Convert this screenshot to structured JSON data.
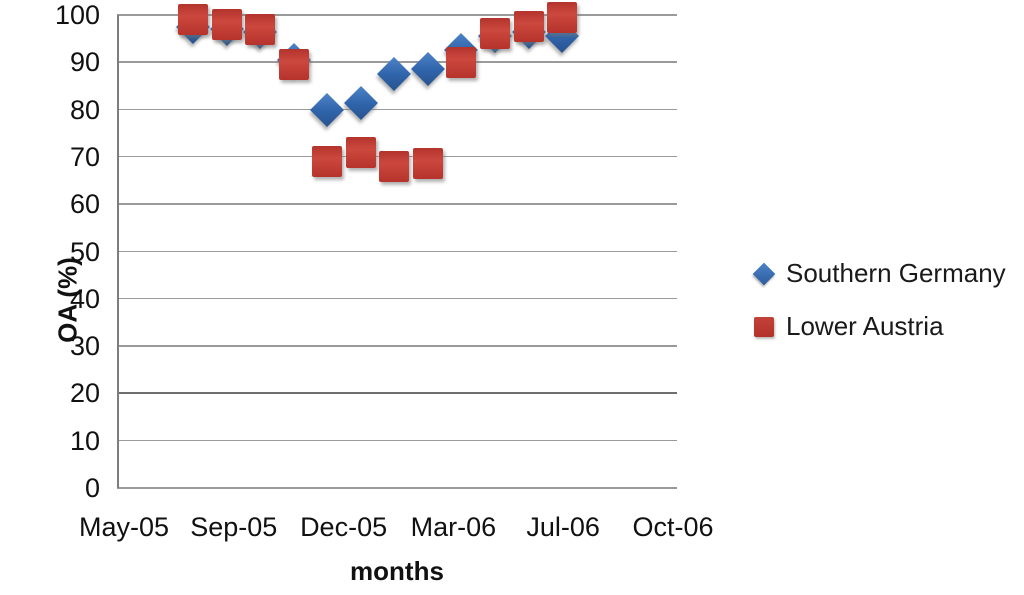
{
  "chart_data": {
    "type": "scatter",
    "title": "",
    "xlabel": "months",
    "ylabel": "OA (%)",
    "x_tick_labels": [
      "May-05",
      "Sep-05",
      "Dec-05",
      "Mar-06",
      "Jul-06",
      "Oct-06"
    ],
    "y_ticks": [
      0,
      10,
      20,
      30,
      40,
      50,
      60,
      70,
      80,
      90,
      100
    ],
    "ylim": [
      0,
      100
    ],
    "grid": "horizontal",
    "legend_position": "right-of-plot",
    "colors": {
      "southern_germany": "#3568B0",
      "lower_austria": "#C23A31",
      "gridline": "#9A9A9A",
      "axis": "#7D7D7D",
      "text": "#161616"
    },
    "series": [
      {
        "name": "Southern Germany",
        "marker": "diamond",
        "color": "#3568B0",
        "points": [
          {
            "month": "Jul-05",
            "oa_pct": 97.5
          },
          {
            "month": "Aug-05",
            "oa_pct": 97
          },
          {
            "month": "Sep-05",
            "oa_pct": 96.5
          },
          {
            "month": "Oct-05",
            "oa_pct": 90.5
          },
          {
            "month": "Nov-05",
            "oa_pct": 80
          },
          {
            "month": "Dec-05",
            "oa_pct": 81.5
          },
          {
            "month": "Jan-06",
            "oa_pct": 87.5
          },
          {
            "month": "Feb-06",
            "oa_pct": 88.5
          },
          {
            "month": "Mar-06",
            "oa_pct": 92.5
          },
          {
            "month": "Apr-06",
            "oa_pct": 95.5
          },
          {
            "month": "May-06",
            "oa_pct": 96.5
          },
          {
            "month": "Jun-06",
            "oa_pct": 95.5
          }
        ]
      },
      {
        "name": "Lower Austria",
        "marker": "square",
        "color": "#C23A31",
        "points": [
          {
            "month": "Jul-05",
            "oa_pct": 99
          },
          {
            "month": "Aug-05",
            "oa_pct": 98
          },
          {
            "month": "Sep-05",
            "oa_pct": 97
          },
          {
            "month": "Oct-05",
            "oa_pct": 89.5
          },
          {
            "month": "Nov-05",
            "oa_pct": 69
          },
          {
            "month": "Dec-05",
            "oa_pct": 71
          },
          {
            "month": "Jan-06",
            "oa_pct": 68
          },
          {
            "month": "Feb-06",
            "oa_pct": 68.5
          },
          {
            "month": "Mar-06",
            "oa_pct": 90
          },
          {
            "month": "Apr-06",
            "oa_pct": 96
          },
          {
            "month": "May-06",
            "oa_pct": 97.5
          },
          {
            "month": "Jun-06",
            "oa_pct": 99.5
          }
        ]
      }
    ]
  }
}
